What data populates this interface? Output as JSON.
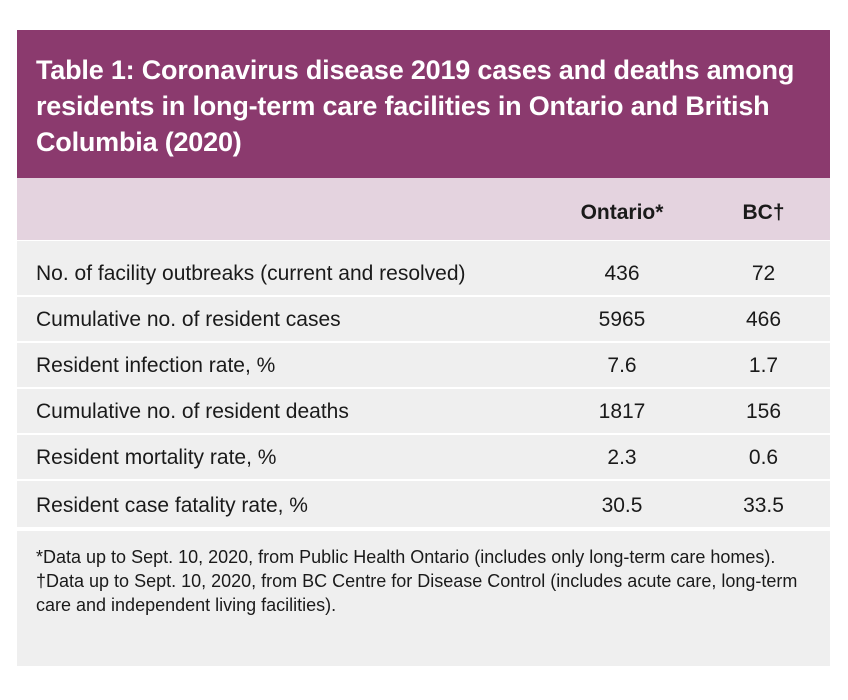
{
  "table": {
    "title": "Table 1: Coronavirus disease 2019 cases and deaths among residents in long-term care facilities in Ontario and British Columbia (2020)",
    "columns": [
      "Ontario*",
      "BC†"
    ],
    "rows": [
      {
        "label": "No. of facility outbreaks (current and resolved)",
        "ontario": "436",
        "bc": "72"
      },
      {
        "label": "Cumulative no. of resident cases",
        "ontario": "5965",
        "bc": "466"
      },
      {
        "label": "Resident infection rate, %",
        "ontario": "7.6",
        "bc": "1.7"
      },
      {
        "label": "Cumulative no. of resident deaths",
        "ontario": "1817",
        "bc": "156"
      },
      {
        "label": "Resident mortality rate, %",
        "ontario": "2.3",
        "bc": "0.6"
      },
      {
        "label": "Resident case fatality rate, %",
        "ontario": "30.5",
        "bc": "33.5"
      }
    ],
    "footnotes": [
      "*Data up to Sept. 10, 2020,  from Public Health Ontario (includes only long-term care homes).",
      "†Data up to Sept. 10, 2020, from BC Centre for Disease Control (includes acute care, long-term care and independent living facilities)."
    ]
  },
  "colors": {
    "title_bg": "#8b3a6e",
    "header_bg": "#e4d3df",
    "row_bg": "#efefef"
  }
}
